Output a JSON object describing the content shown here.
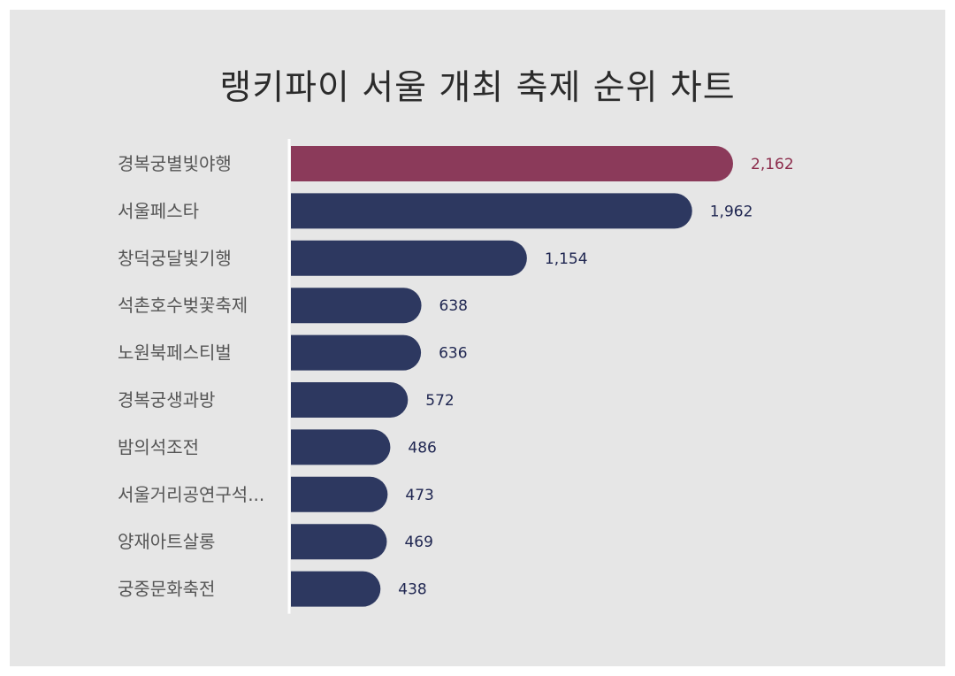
{
  "chart_data": {
    "type": "bar",
    "orientation": "horizontal",
    "title": "랭키파이 서울 개최 축제 순위 차트",
    "categories": [
      "경복궁별빛야행",
      "서울페스타",
      "창덕궁달빛기행",
      "석촌호수벚꽃축제",
      "노원북페스티벌",
      "경복궁생과방",
      "밤의석조전",
      "서울거리공연구석...",
      "양재아트살롱",
      "궁중문화축전"
    ],
    "values": [
      2162,
      1962,
      1154,
      638,
      636,
      572,
      486,
      473,
      469,
      438
    ],
    "value_labels": [
      "2,162",
      "1,962",
      "1,154",
      "638",
      "636",
      "572",
      "486",
      "473",
      "469",
      "438"
    ],
    "highlight_index": 0,
    "colors": {
      "highlight": "#8b3a5a",
      "bar": "#2d3860",
      "highlight_text": "#8b2a4a",
      "value_text": "#1e2550",
      "background": "#e6e6e6"
    },
    "grid": false,
    "legend": "none"
  }
}
